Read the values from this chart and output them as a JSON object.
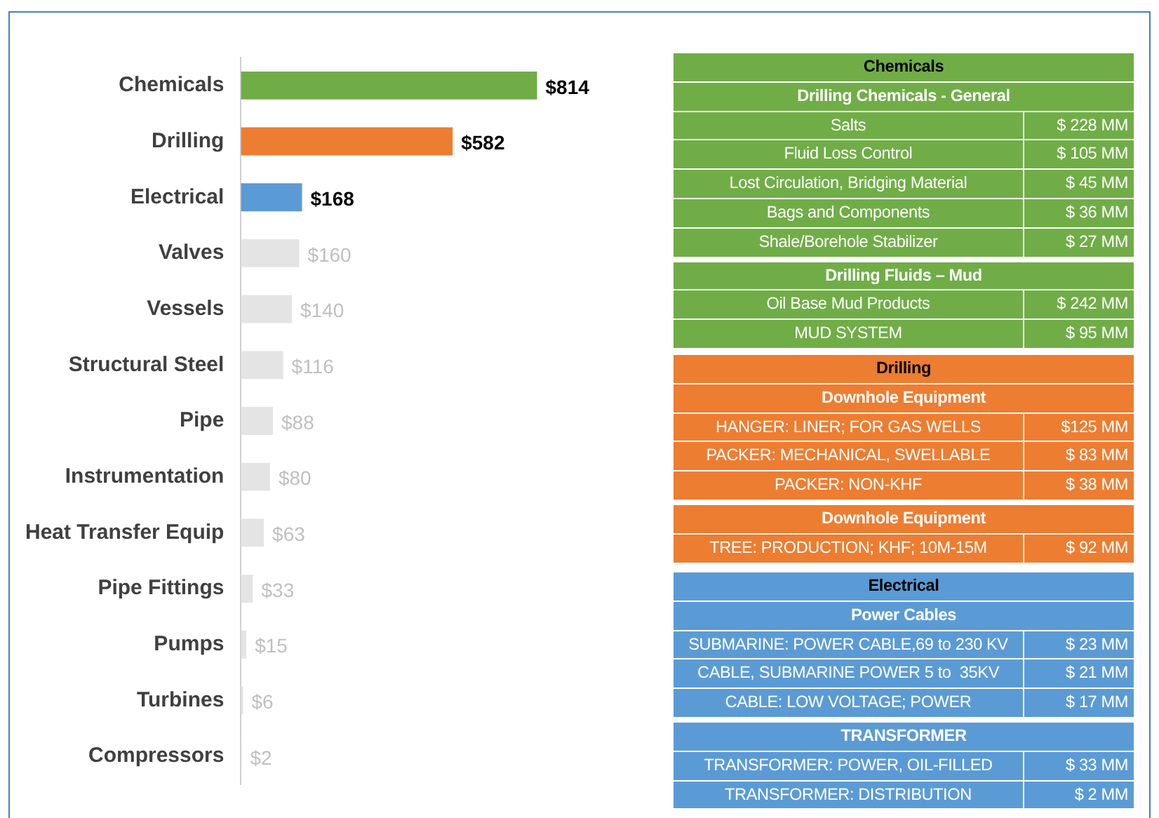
{
  "chart_data": [
    {
      "type": "bar",
      "orientation": "horizontal",
      "categories": [
        "Chemicals",
        "Drilling",
        "Electrical",
        "Valves",
        "Vessels",
        "Structural Steel",
        "Pipe",
        "Instrumentation",
        "Heat Transfer Equip",
        "Pipe Fittings",
        "Pumps",
        "Turbines",
        "Compressors"
      ],
      "values": [
        814,
        582,
        168,
        160,
        140,
        116,
        88,
        80,
        63,
        33,
        15,
        6,
        2
      ],
      "colors": [
        "#70ad47",
        "#ed7d31",
        "#5b9bd5",
        "#e4e4e4",
        "#e4e4e4",
        "#e4e4e4",
        "#e4e4e4",
        "#e4e4e4",
        "#e4e4e4",
        "#e4e4e4",
        "#e4e4e4",
        "#e4e4e4",
        "#e4e4e4"
      ],
      "value_labels": [
        "$814",
        "$582",
        "$168",
        "$160",
        "$140",
        "$116",
        "$88",
        "$80",
        "$63",
        "$33",
        "$15",
        "$6",
        "$2"
      ],
      "legend": false,
      "tick_labels": "y"
    },
    {
      "type": "other",
      "title": "Chemicals",
      "color": "#70ad47",
      "categories": [
        "Drilling Chemicals - General",
        "Salts",
        "Fluid Loss Control",
        "Lost Circulation, Bridging Material",
        "Bags and Components",
        "Shale/Borehole Stabilizer",
        "Drilling Fluids – Mud",
        "Oil Base Mud Products",
        "MUD SYSTEM"
      ],
      "value_labels": [
        null,
        "$ 228 MM",
        "$ 105 MM",
        "$ 45 MM",
        "$ 36 MM",
        "$ 27 MM",
        null,
        "$ 242 MM",
        "$ 95 MM"
      ]
    },
    {
      "type": "other",
      "title": "Drilling",
      "color": "#ed7d31",
      "categories": [
        "Downhole Equipment",
        "HANGER: LINER; FOR GAS WELLS",
        "PACKER: MECHANICAL, SWELLABLE",
        "PACKER: NON-KHF",
        "Downhole Equipment",
        "TREE: PRODUCTION; KHF; 10M-15M"
      ],
      "value_labels": [
        null,
        "$125 MM",
        "$ 83 MM",
        "$ 38 MM",
        null,
        "$ 92 MM"
      ]
    },
    {
      "type": "other",
      "title": "Electrical",
      "color": "#5b9bd5",
      "categories": [
        "Power Cables",
        "SUBMARINE: POWER CABLE,69 to 230 KV",
        "CABLE, SUBMARINE POWER 5 to  35KV",
        "CABLE: LOW VOLTAGE; POWER",
        "TRANSFORMER",
        "TRANSFORMER: POWER, OIL-FILLED",
        "TRANSFORMER: DISTRIBUTION"
      ],
      "value_labels": [
        null,
        "$ 23 MM",
        "$ 21 MM",
        "$ 17 MM",
        null,
        "$ 33 MM",
        "$ 2 MM"
      ]
    }
  ]
}
